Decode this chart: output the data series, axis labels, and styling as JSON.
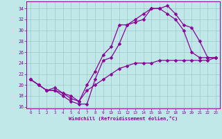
{
  "xlabel": "Windchill (Refroidissement éolien,°C)",
  "xlim": [
    0,
    23
  ],
  "ylim": [
    16,
    35
  ],
  "xticks": [
    0,
    1,
    2,
    3,
    4,
    5,
    6,
    7,
    8,
    9,
    10,
    11,
    12,
    13,
    14,
    15,
    16,
    17,
    18,
    19,
    20,
    21,
    22,
    23
  ],
  "yticks": [
    16,
    18,
    20,
    22,
    24,
    26,
    28,
    30,
    32,
    34
  ],
  "bg_color": "#c0e8e8",
  "grid_color": "#a0c8c8",
  "line_color": "#880099",
  "line1_x": [
    0,
    1,
    2,
    3,
    4,
    5,
    6,
    7,
    8,
    9,
    10,
    11,
    12,
    13,
    14,
    15,
    16,
    17,
    18,
    19,
    20,
    21,
    22,
    23
  ],
  "line1_y": [
    21,
    20,
    19,
    19,
    18,
    17,
    16.5,
    16.5,
    21,
    24.5,
    25,
    27.5,
    31,
    31.5,
    32,
    34,
    34,
    34.5,
    33,
    31,
    30.5,
    28,
    25,
    25
  ],
  "line2_x": [
    0,
    1,
    2,
    3,
    4,
    5,
    6,
    7,
    8,
    9,
    10,
    11,
    12,
    13,
    14,
    15,
    16,
    17,
    18,
    19,
    20,
    21,
    22,
    23
  ],
  "line2_y": [
    21,
    20,
    19,
    19.5,
    18.5,
    17.5,
    17,
    20,
    22.5,
    25.5,
    27,
    31,
    31,
    32,
    33,
    34,
    34,
    33,
    32,
    30,
    26,
    25,
    25,
    25
  ],
  "line3_x": [
    0,
    1,
    2,
    3,
    4,
    5,
    6,
    7,
    8,
    9,
    10,
    11,
    12,
    13,
    14,
    15,
    16,
    17,
    18,
    19,
    20,
    21,
    22,
    23
  ],
  "line3_y": [
    21,
    20,
    19,
    19,
    18.5,
    18,
    17,
    19,
    20,
    21,
    22,
    23,
    23.5,
    24,
    24,
    24,
    24.5,
    24.5,
    24.5,
    24.5,
    24.5,
    24.5,
    24.5,
    25
  ]
}
